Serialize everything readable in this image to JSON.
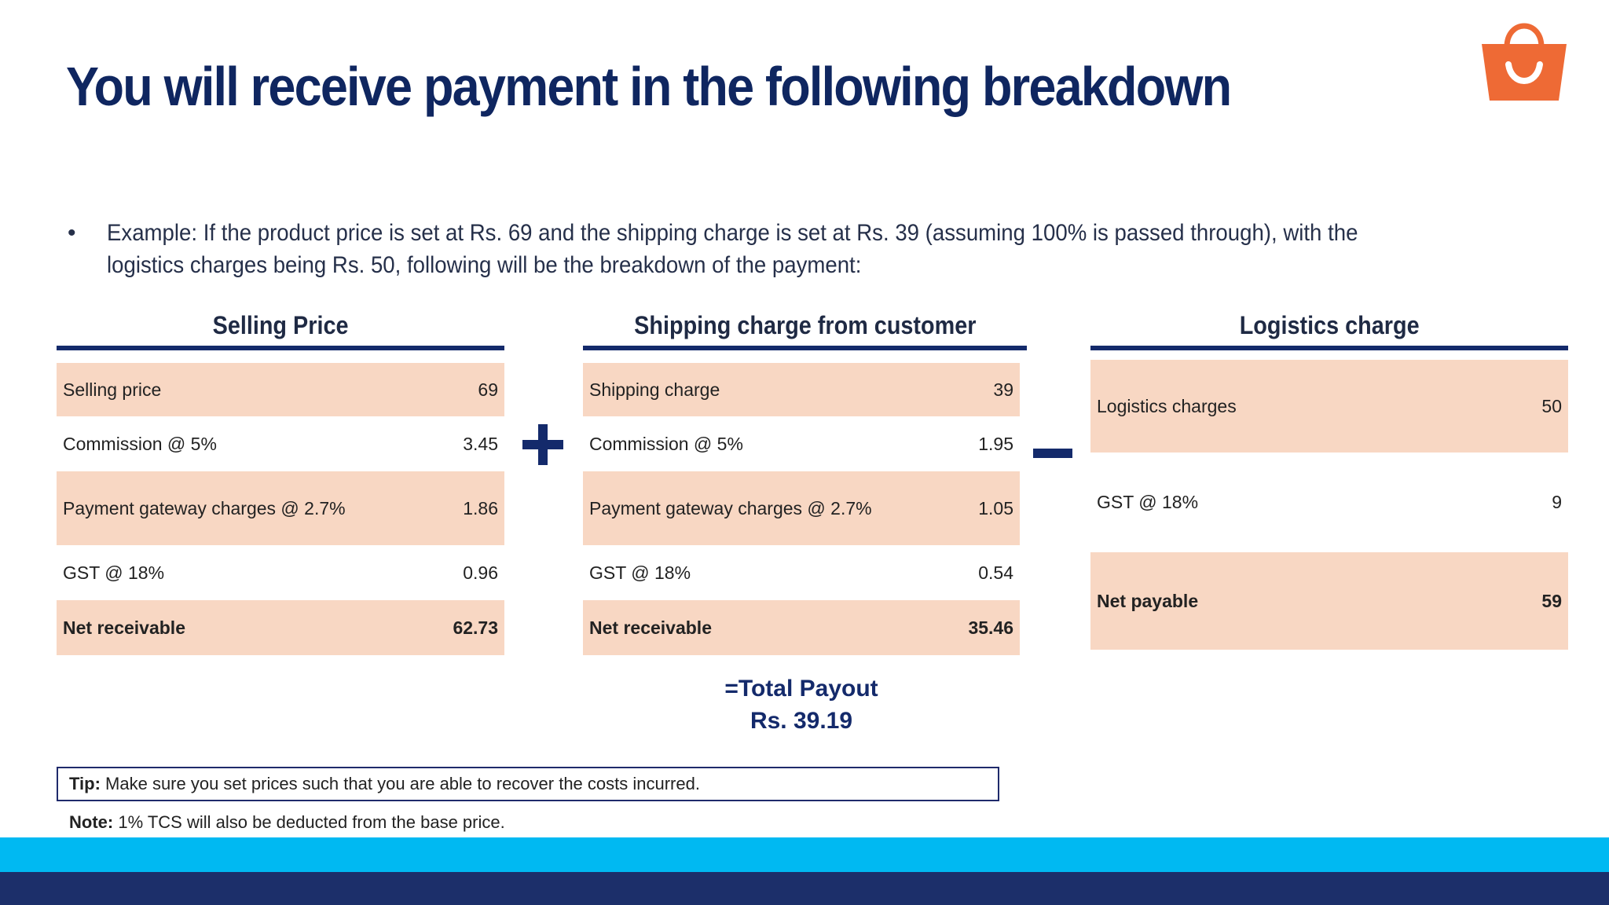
{
  "title": "You will receive payment in the following breakdown",
  "example": {
    "bullet": "•",
    "text": "Example: If the product price is set at Rs. 69 and the shipping charge is set at Rs. 39 (assuming 100% is passed through), with the logistics charges being Rs. 50, following will be the breakdown of the payment:"
  },
  "selling": {
    "title": "Selling Price",
    "rows": [
      {
        "label": "Selling price",
        "value": "69"
      },
      {
        "label": "Commission @ 5%",
        "value": "3.45"
      },
      {
        "label": "Payment gateway charges @ 2.7%",
        "value": "1.86"
      },
      {
        "label": "GST @ 18%",
        "value": "0.96"
      },
      {
        "label": "Net receivable",
        "value": "62.73"
      }
    ]
  },
  "shipping": {
    "title": "Shipping charge from customer",
    "rows": [
      {
        "label": "Shipping charge",
        "value": "39"
      },
      {
        "label": "Commission @ 5%",
        "value": "1.95"
      },
      {
        "label": "Payment gateway charges @ 2.7%",
        "value": "1.05"
      },
      {
        "label": "GST @ 18%",
        "value": "0.54"
      },
      {
        "label": "Net receivable",
        "value": "35.46"
      }
    ]
  },
  "logistics": {
    "title": "Logistics charge",
    "rows": [
      {
        "label": "Logistics charges",
        "value": "50"
      },
      {
        "label": "GST @ 18%",
        "value": "9"
      },
      {
        "label": "Net payable",
        "value": "59"
      }
    ]
  },
  "total": {
    "label": "=Total Payout",
    "amount": "Rs. 39.19"
  },
  "tip": {
    "prefix": "Tip:",
    "text": " Make sure you set prices such that you are able to recover the costs incurred."
  },
  "note": {
    "prefix": "Note:",
    "text": " 1% TCS will also be deducted from the base price."
  },
  "colors": {
    "title": "#0f2660",
    "accent": "#142a6b",
    "row_shade": "#f8d7c3",
    "bag": "#ee6a35",
    "band_light": "#00b9f2",
    "band_dark": "#1c2f6a"
  },
  "icons": {
    "logo": "shopping-bag-icon",
    "plus": "plus-icon",
    "minus": "minus-icon"
  }
}
